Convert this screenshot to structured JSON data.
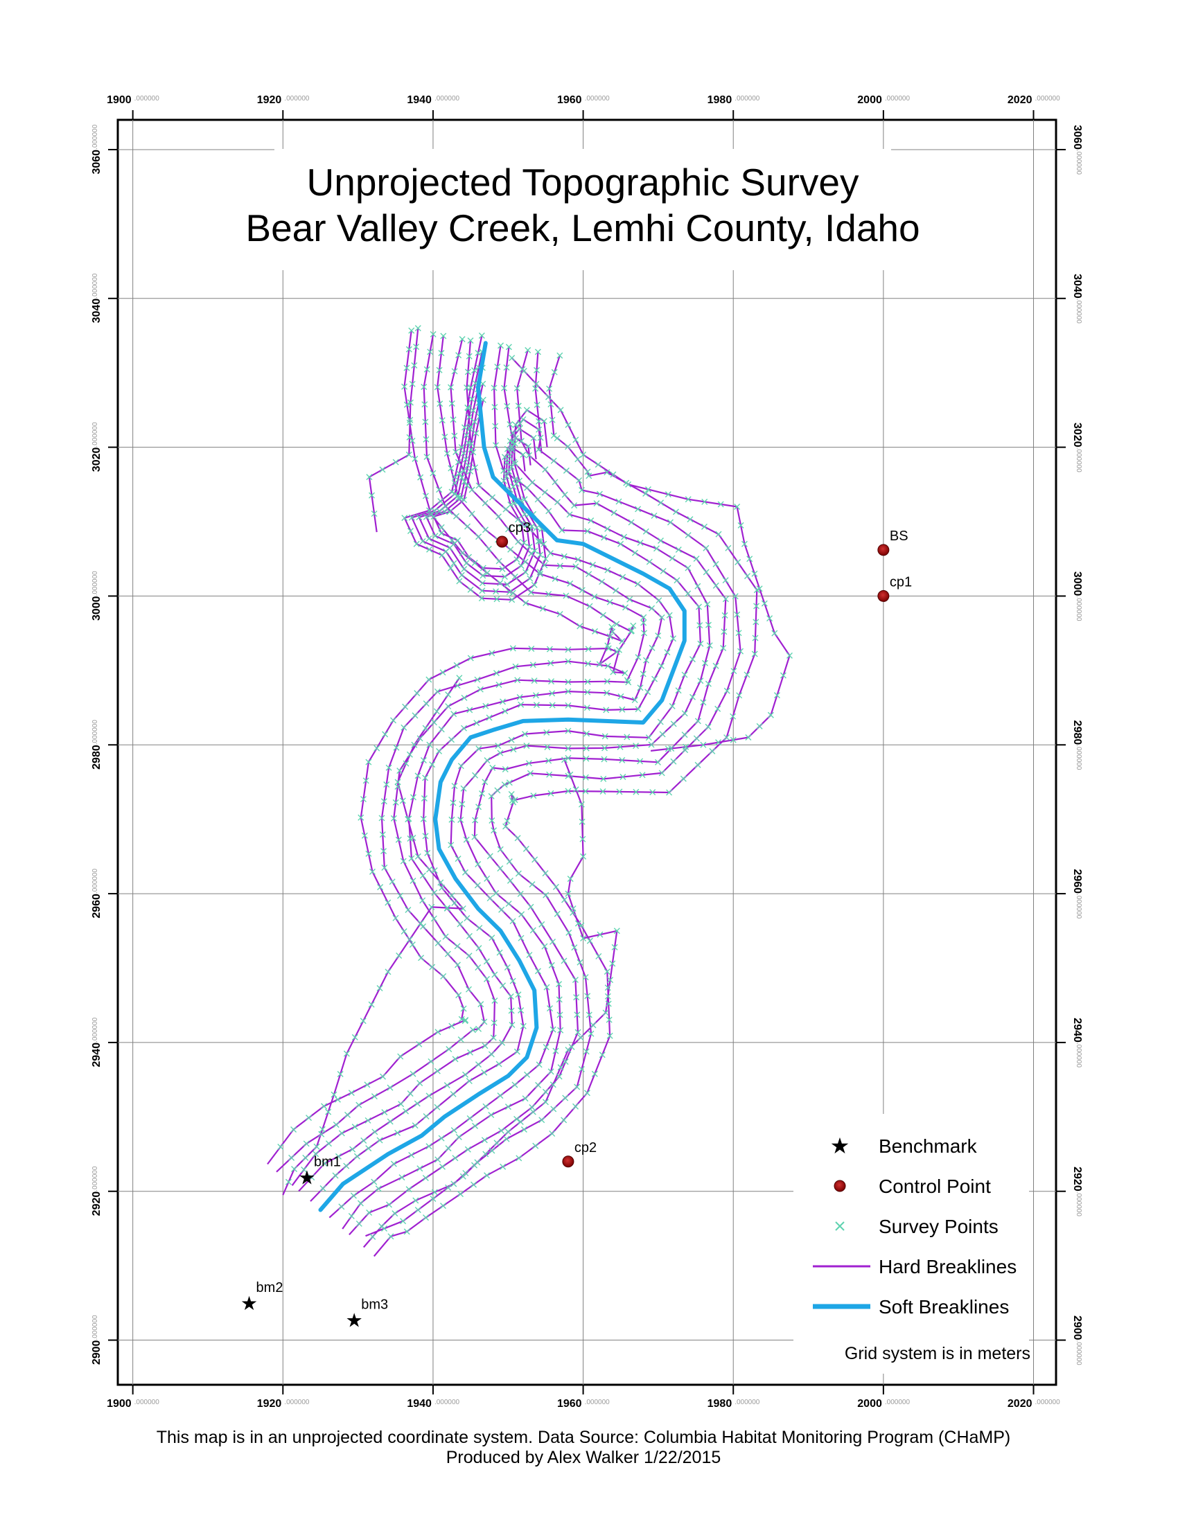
{
  "title": {
    "line1": "Unprojected Topographic Survey",
    "line2": "Bear Valley Creek, Lemhi County, Idaho"
  },
  "axes": {
    "x_ticks": [
      1900,
      1920,
      1940,
      1960,
      1980,
      2000,
      2020
    ],
    "y_ticks": [
      2900,
      2920,
      2940,
      2960,
      2980,
      3000,
      3020,
      3040,
      3060
    ],
    "decimal_suffix": ".000000",
    "x_range": [
      1898,
      2023
    ],
    "y_range": [
      2894,
      3064
    ]
  },
  "points": {
    "control_points": [
      {
        "label": "BS",
        "x": 2000,
        "y": 3006.2
      },
      {
        "label": "cp1",
        "x": 2000,
        "y": 3000
      },
      {
        "label": "cp3",
        "x": 1949.2,
        "y": 3007.3
      },
      {
        "label": "cp2",
        "x": 1958,
        "y": 2924
      }
    ],
    "benchmarks": [
      {
        "label": "bm1",
        "x": 1923.2,
        "y": 2921.9
      },
      {
        "label": "bm2",
        "x": 1915.5,
        "y": 2905
      },
      {
        "label": "bm3",
        "x": 1929.5,
        "y": 2902.7
      }
    ]
  },
  "legend": {
    "items": [
      {
        "label": "Benchmark",
        "symbol": "star"
      },
      {
        "label": "Control Point",
        "symbol": "circle"
      },
      {
        "label": "Survey Points",
        "symbol": "cross"
      },
      {
        "label": "Hard Breaklines",
        "symbol": "thin-line"
      },
      {
        "label": "Soft Breaklines",
        "symbol": "thick-line"
      }
    ],
    "note": "Grid system is in meters"
  },
  "colors": {
    "hard_breakline": "#a020d0",
    "soft_breakline": "#1ea6e6",
    "survey_point": "#5fd3b0",
    "control_point": "#a00000",
    "grid": "#808080"
  },
  "footer": {
    "line1": "This map is in an unprojected coordinate system. Data Source: Columbia Habitat Monitoring Program (CHaMP)",
    "line2": "Produced by Alex Walker 1/22/2015"
  }
}
